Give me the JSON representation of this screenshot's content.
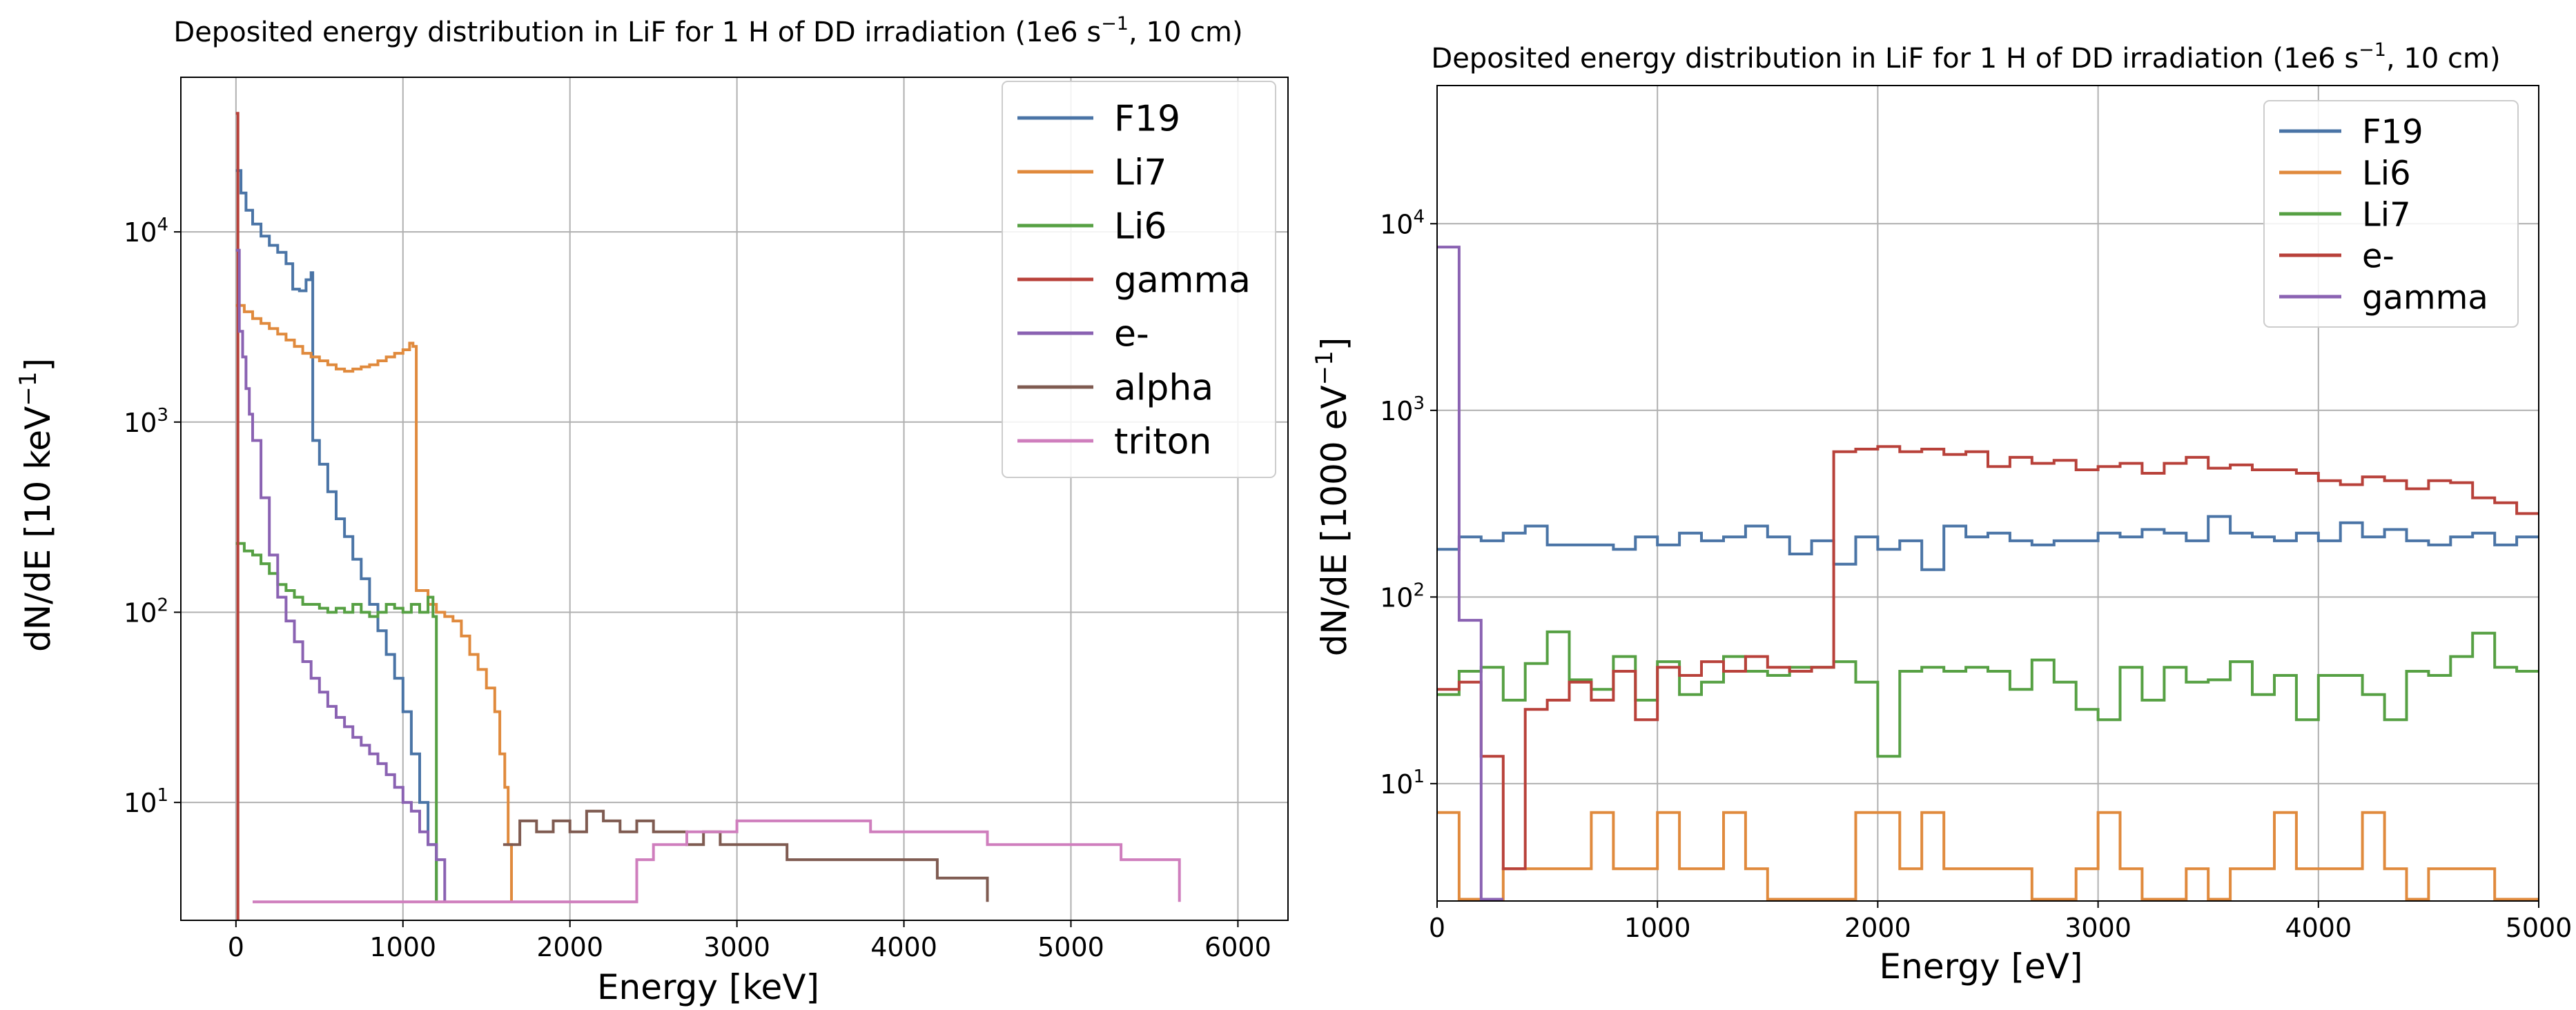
{
  "chart_data": [
    {
      "type": "line",
      "step": true,
      "title": "Deposited energy distribution in LiF for 1 H of DD irradiation (1e6 s",
      "title_sup": "−1",
      "title_end": ", 10 cm)",
      "xlabel": "Energy [keV]",
      "ylabel": "dN/dE [10 keV",
      "ylabel_sup": "−1",
      "ylabel_end": "]",
      "xscale": "linear",
      "yscale": "log",
      "xlim": [
        -330,
        6300
      ],
      "ylim": [
        2.4,
        65000
      ],
      "xticks": [
        0,
        1000,
        2000,
        3000,
        4000,
        5000,
        6000
      ],
      "xtick_labels": [
        "0",
        "1000",
        "2000",
        "3000",
        "4000",
        "5000",
        "6000"
      ],
      "yticks": [
        10,
        100,
        1000,
        10000
      ],
      "ytick_labels": [
        {
          "base": "10",
          "exp": "1"
        },
        {
          "base": "10",
          "exp": "2"
        },
        {
          "base": "10",
          "exp": "3"
        },
        {
          "base": "10",
          "exp": "4"
        }
      ],
      "grid": true,
      "legend_position": "top-right",
      "series": [
        {
          "name": "F19",
          "color": "#4a74a6",
          "points": [
            [
              0,
              21000
            ],
            [
              30,
              16000
            ],
            [
              60,
              13000
            ],
            [
              100,
              11000
            ],
            [
              150,
              9500
            ],
            [
              200,
              8500
            ],
            [
              250,
              7800
            ],
            [
              300,
              6800
            ],
            [
              340,
              5000
            ],
            [
              380,
              4900
            ],
            [
              420,
              5600
            ],
            [
              450,
              6100
            ],
            [
              460,
              800
            ],
            [
              500,
              600
            ],
            [
              550,
              430
            ],
            [
              600,
              310
            ],
            [
              650,
              250
            ],
            [
              700,
              190
            ],
            [
              750,
              150
            ],
            [
              800,
              110
            ],
            [
              850,
              80
            ],
            [
              900,
              60
            ],
            [
              950,
              45
            ],
            [
              1000,
              30
            ],
            [
              1050,
              18
            ],
            [
              1100,
              10
            ],
            [
              1150,
              6
            ],
            [
              1200,
              3
            ]
          ]
        },
        {
          "name": "Li7",
          "color": "#e08a3d",
          "points": [
            [
              0,
              4100
            ],
            [
              50,
              3800
            ],
            [
              100,
              3500
            ],
            [
              150,
              3300
            ],
            [
              200,
              3100
            ],
            [
              250,
              2900
            ],
            [
              300,
              2700
            ],
            [
              350,
              2500
            ],
            [
              400,
              2300
            ],
            [
              450,
              2200
            ],
            [
              500,
              2100
            ],
            [
              550,
              2000
            ],
            [
              600,
              1900
            ],
            [
              650,
              1850
            ],
            [
              700,
              1900
            ],
            [
              750,
              1950
            ],
            [
              800,
              2000
            ],
            [
              850,
              2100
            ],
            [
              900,
              2200
            ],
            [
              950,
              2300
            ],
            [
              1000,
              2400
            ],
            [
              1040,
              2600
            ],
            [
              1060,
              2500
            ],
            [
              1080,
              130
            ],
            [
              1150,
              110
            ],
            [
              1200,
              100
            ],
            [
              1250,
              95
            ],
            [
              1300,
              90
            ],
            [
              1350,
              75
            ],
            [
              1400,
              60
            ],
            [
              1450,
              50
            ],
            [
              1500,
              40
            ],
            [
              1550,
              30
            ],
            [
              1580,
              18
            ],
            [
              1610,
              12
            ],
            [
              1630,
              6
            ],
            [
              1650,
              3
            ]
          ]
        },
        {
          "name": "Li6",
          "color": "#56a043",
          "points": [
            [
              0,
              230
            ],
            [
              50,
              210
            ],
            [
              100,
              200
            ],
            [
              150,
              180
            ],
            [
              200,
              160
            ],
            [
              250,
              140
            ],
            [
              300,
              130
            ],
            [
              350,
              120
            ],
            [
              400,
              110
            ],
            [
              450,
              110
            ],
            [
              500,
              105
            ],
            [
              550,
              100
            ],
            [
              600,
              105
            ],
            [
              650,
              100
            ],
            [
              700,
              110
            ],
            [
              750,
              100
            ],
            [
              800,
              95
            ],
            [
              850,
              100
            ],
            [
              900,
              110
            ],
            [
              950,
              105
            ],
            [
              1000,
              100
            ],
            [
              1050,
              110
            ],
            [
              1100,
              100
            ],
            [
              1150,
              120
            ],
            [
              1180,
              95
            ],
            [
              1200,
              3
            ]
          ]
        },
        {
          "name": "gamma",
          "color": "#b8413a",
          "points": [
            [
              0,
              42000
            ],
            [
              8,
              42000
            ],
            [
              12,
              2.4
            ]
          ]
        },
        {
          "name": "e-",
          "color": "#8a62b2",
          "points": [
            [
              0,
              8000
            ],
            [
              20,
              3000
            ],
            [
              40,
              2200
            ],
            [
              60,
              1500
            ],
            [
              80,
              1100
            ],
            [
              100,
              800
            ],
            [
              150,
              400
            ],
            [
              200,
              200
            ],
            [
              250,
              120
            ],
            [
              300,
              90
            ],
            [
              350,
              70
            ],
            [
              400,
              55
            ],
            [
              450,
              45
            ],
            [
              500,
              38
            ],
            [
              550,
              32
            ],
            [
              600,
              28
            ],
            [
              650,
              25
            ],
            [
              700,
              22
            ],
            [
              750,
              20
            ],
            [
              800,
              18
            ],
            [
              850,
              16
            ],
            [
              900,
              14
            ],
            [
              950,
              12
            ],
            [
              1000,
              10
            ],
            [
              1050,
              9
            ],
            [
              1100,
              7
            ],
            [
              1150,
              6
            ],
            [
              1200,
              5
            ],
            [
              1250,
              3
            ]
          ]
        },
        {
          "name": "alpha",
          "color": "#7f5b51",
          "points": [
            [
              1600,
              6
            ],
            [
              1700,
              8
            ],
            [
              1800,
              7
            ],
            [
              1900,
              8
            ],
            [
              2000,
              7
            ],
            [
              2100,
              9
            ],
            [
              2200,
              8
            ],
            [
              2300,
              7
            ],
            [
              2400,
              8
            ],
            [
              2500,
              7
            ],
            [
              2600,
              7
            ],
            [
              2700,
              6
            ],
            [
              2800,
              7
            ],
            [
              2900,
              6
            ],
            [
              3000,
              6
            ],
            [
              3100,
              6
            ],
            [
              3200,
              6
            ],
            [
              3300,
              5
            ],
            [
              3400,
              5
            ],
            [
              3500,
              5
            ],
            [
              3600,
              5
            ],
            [
              3700,
              5
            ],
            [
              3800,
              5
            ],
            [
              3900,
              5
            ],
            [
              4000,
              5
            ],
            [
              4100,
              5
            ],
            [
              4200,
              4
            ],
            [
              4300,
              4
            ],
            [
              4400,
              4
            ],
            [
              4500,
              3
            ]
          ]
        },
        {
          "name": "triton",
          "color": "#cf7ebd",
          "points": [
            [
              100,
              3
            ],
            [
              200,
              3
            ],
            [
              2400,
              5
            ],
            [
              2500,
              6
            ],
            [
              2600,
              6
            ],
            [
              2700,
              7
            ],
            [
              2800,
              7
            ],
            [
              2900,
              7
            ],
            [
              3000,
              8
            ],
            [
              3100,
              8
            ],
            [
              3200,
              8
            ],
            [
              3300,
              8
            ],
            [
              3400,
              8
            ],
            [
              3500,
              8
            ],
            [
              3600,
              8
            ],
            [
              3700,
              8
            ],
            [
              3800,
              7
            ],
            [
              3900,
              7
            ],
            [
              4000,
              7
            ],
            [
              4100,
              7
            ],
            [
              4200,
              7
            ],
            [
              4300,
              7
            ],
            [
              4400,
              7
            ],
            [
              4500,
              6
            ],
            [
              4600,
              6
            ],
            [
              4700,
              6
            ],
            [
              4800,
              6
            ],
            [
              4900,
              6
            ],
            [
              5000,
              6
            ],
            [
              5100,
              6
            ],
            [
              5200,
              6
            ],
            [
              5300,
              5
            ],
            [
              5400,
              5
            ],
            [
              5500,
              5
            ],
            [
              5600,
              5
            ],
            [
              5650,
              3
            ]
          ]
        }
      ]
    },
    {
      "type": "line",
      "step": true,
      "title": "Deposited energy distribution in LiF for 1 H of DD irradiation (1e6 s",
      "title_sup": "−1",
      "title_end": ", 10 cm)",
      "xlabel": "Energy [eV]",
      "ylabel": "dN/dE [1000 eV",
      "ylabel_sup": "−1",
      "ylabel_end": "]",
      "xscale": "linear",
      "yscale": "log",
      "xlim": [
        0,
        5000
      ],
      "ylim": [
        2.35,
        55000
      ],
      "xticks": [
        0,
        1000,
        2000,
        3000,
        4000,
        5000
      ],
      "xtick_labels": [
        "0",
        "1000",
        "2000",
        "3000",
        "4000",
        "5000"
      ],
      "yticks": [
        10,
        100,
        1000,
        10000
      ],
      "ytick_labels": [
        {
          "base": "10",
          "exp": "1"
        },
        {
          "base": "10",
          "exp": "2"
        },
        {
          "base": "10",
          "exp": "3"
        },
        {
          "base": "10",
          "exp": "4"
        }
      ],
      "grid": true,
      "legend_position": "top-right",
      "series": [
        {
          "name": "F19",
          "color": "#4a74a6",
          "bin_start": 0,
          "bin_width": 100,
          "values": [
            180,
            210,
            200,
            220,
            240,
            190,
            190,
            190,
            180,
            210,
            190,
            220,
            200,
            210,
            240,
            210,
            170,
            200,
            150,
            210,
            180,
            200,
            140,
            240,
            210,
            220,
            200,
            190,
            200,
            200,
            220,
            210,
            230,
            220,
            200,
            270,
            220,
            210,
            200,
            220,
            200,
            250,
            210,
            230,
            200,
            190,
            210,
            220,
            190,
            210
          ]
        },
        {
          "name": "Li6",
          "color": "#e08a3d",
          "bin_start": 0,
          "bin_width": 100,
          "values": [
            7,
            2.4,
            2.4,
            3.5,
            3.5,
            3.5,
            3.5,
            7,
            3.5,
            3.5,
            7,
            3.5,
            3.5,
            7,
            3.5,
            2.4,
            2.4,
            2.4,
            2.4,
            7,
            7,
            3.5,
            7,
            3.5,
            3.5,
            3.5,
            3.5,
            2.4,
            2.4,
            3.5,
            7,
            3.5,
            2.4,
            2.4,
            3.5,
            2.4,
            3.5,
            3.5,
            7,
            3.5,
            3.5,
            3.5,
            7,
            3.5,
            2.4,
            3.5,
            3.5,
            3.5,
            2.4,
            2.4
          ]
        },
        {
          "name": "Li7",
          "color": "#56a043",
          "bin_start": 0,
          "bin_width": 100,
          "values": [
            30,
            40,
            42,
            28,
            44,
            65,
            36,
            32,
            48,
            28,
            45,
            30,
            35,
            48,
            40,
            38,
            42,
            42,
            45,
            35,
            14,
            40,
            42,
            40,
            42,
            40,
            32,
            46,
            35,
            25,
            22,
            42,
            28,
            42,
            35,
            36,
            45,
            30,
            38,
            22,
            38,
            38,
            30,
            22,
            40,
            38,
            48,
            64,
            42,
            40
          ]
        },
        {
          "name": "e-",
          "color": "#b8413a",
          "bin_start": 0,
          "bin_width": 100,
          "values": [
            32,
            35,
            14,
            3.5,
            25,
            28,
            35,
            28,
            40,
            22,
            42,
            38,
            45,
            40,
            48,
            42,
            40,
            42,
            600,
            620,
            640,
            600,
            620,
            580,
            600,
            500,
            560,
            520,
            540,
            480,
            500,
            520,
            460,
            520,
            560,
            490,
            510,
            480,
            480,
            460,
            420,
            400,
            440,
            420,
            380,
            420,
            410,
            340,
            320,
            280
          ]
        },
        {
          "name": "gamma",
          "color": "#8a62b2",
          "bin_start": 0,
          "bin_width": 100,
          "values": [
            7500,
            75,
            2.4
          ]
        }
      ]
    }
  ]
}
